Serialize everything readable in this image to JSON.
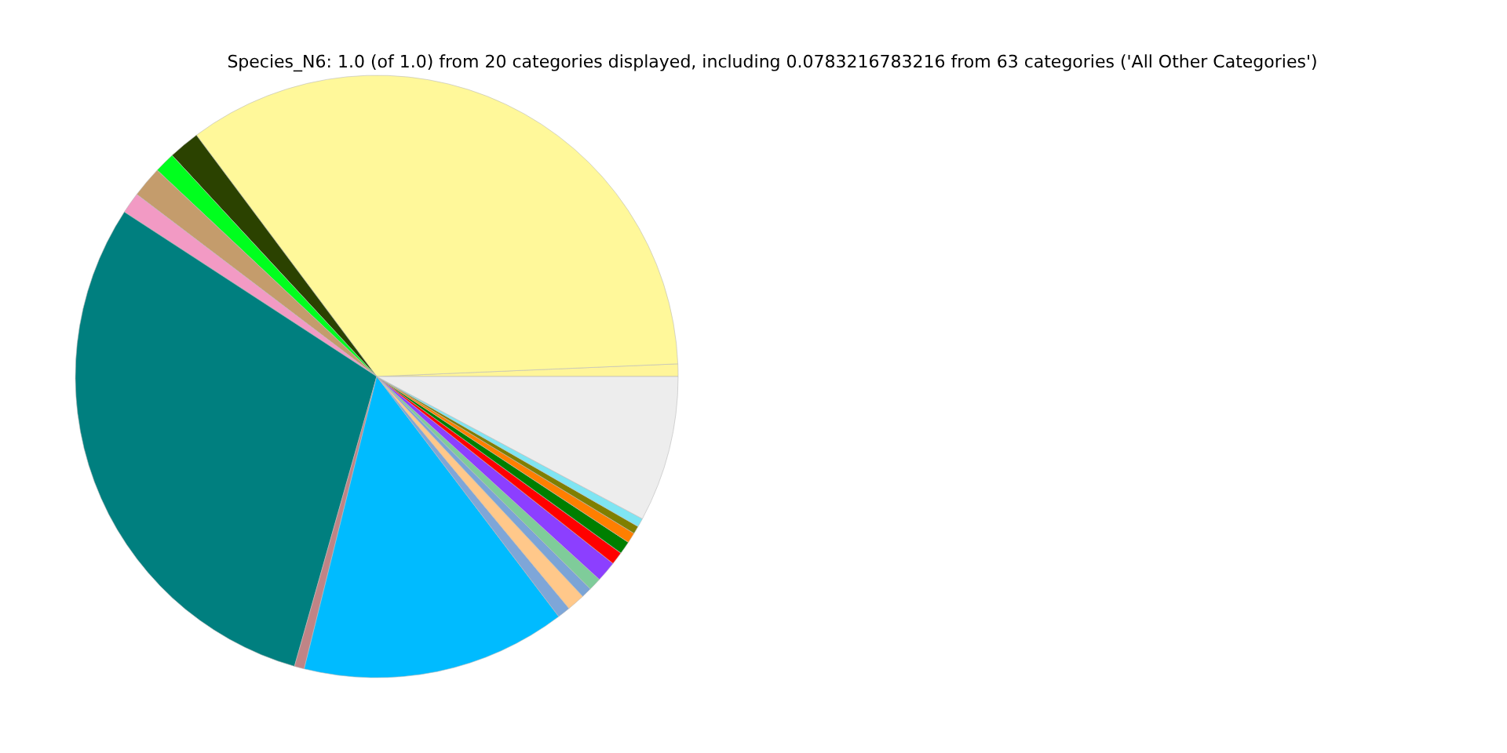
{
  "chart_data": {
    "type": "pie",
    "title": "Species_N6: 1.0 (of 1.0) from 20 categories displayed, including 0.0783216783216 from 63 categories ('All Other Categories')",
    "categories": [
      null,
      null,
      null,
      null,
      null,
      null,
      null,
      null,
      null,
      null,
      null,
      null,
      null,
      null,
      null,
      null,
      null,
      null,
      null,
      null
    ],
    "values": [
      0.67,
      34.54,
      1.67,
      1.11,
      1.67,
      1.14,
      29.8,
      0.53,
      14.19,
      0.69,
      0.97,
      0.56,
      0.69,
      1.11,
      0.69,
      0.69,
      0.56,
      0.42,
      0.47,
      7.83
    ],
    "colors": [
      "#fff59a",
      "#fff89a",
      "#2b4200",
      "#00ff1e",
      "#c49c6c",
      "#f29ac4",
      "#007f7f",
      "#c08486",
      "#00bbff",
      "#7ea6d8",
      "#ffc88a",
      "#7ba4d6",
      "#7fcc9a",
      "#8c3fff",
      "#ff0000",
      "#007f00",
      "#ff7f00",
      "#7f7f00",
      "#7fe5f2",
      "#ededed"
    ]
  }
}
